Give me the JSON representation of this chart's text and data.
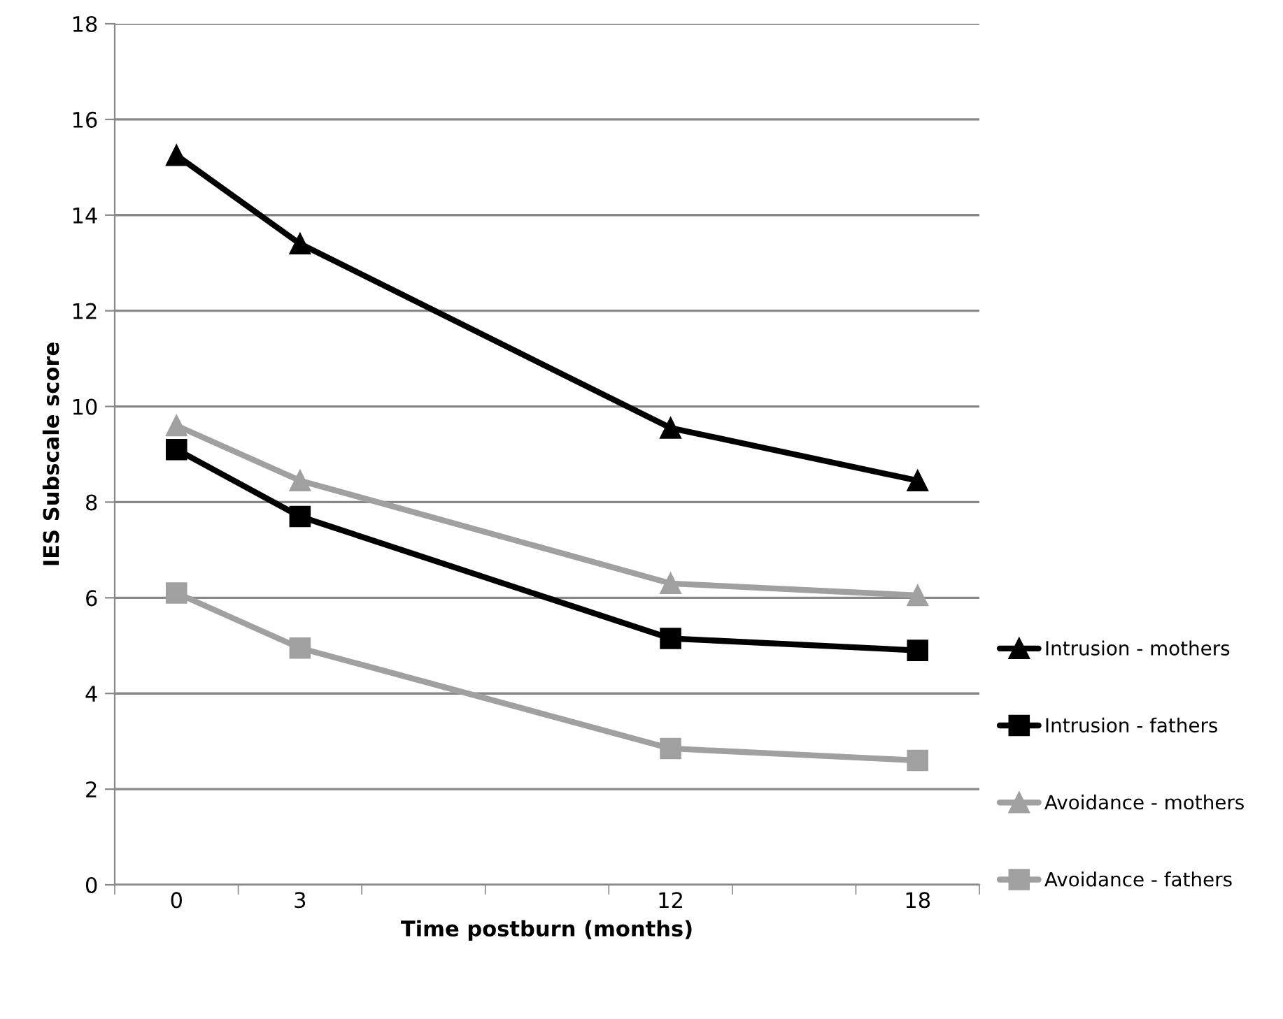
{
  "chart_data": {
    "type": "line",
    "xlabel": "Time postburn (months)",
    "ylabel": "IES Subscale score",
    "categories": [
      "0",
      "3",
      null,
      null,
      "12",
      null,
      "18"
    ],
    "ylim": [
      0,
      18
    ],
    "yticks": [
      0,
      2,
      4,
      6,
      8,
      10,
      12,
      14,
      16,
      18
    ],
    "grid": "y",
    "legend": "right",
    "series": [
      {
        "name": "Intrusion - mothers",
        "color": "#000000",
        "marker": "triangle",
        "values": [
          15.25,
          13.4,
          null,
          null,
          9.55,
          null,
          8.45
        ]
      },
      {
        "name": "Intrusion - fathers",
        "color": "#000000",
        "marker": "square",
        "values": [
          9.1,
          7.7,
          null,
          null,
          5.15,
          null,
          4.9
        ]
      },
      {
        "name": "Avoidance - mothers",
        "color": "#a0a0a0",
        "marker": "triangle",
        "values": [
          9.6,
          8.45,
          null,
          null,
          6.3,
          null,
          6.05
        ]
      },
      {
        "name": "Avoidance - fathers",
        "color": "#a0a0a0",
        "marker": "square",
        "values": [
          6.1,
          4.95,
          null,
          null,
          2.85,
          null,
          2.6
        ]
      }
    ]
  }
}
